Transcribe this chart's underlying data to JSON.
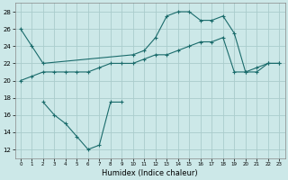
{
  "xlabel": "Humidex (Indice chaleur)",
  "bg_color": "#cce8e8",
  "grid_color": "#aacccc",
  "line_color": "#1a6b6b",
  "xlim": [
    -0.5,
    23.5
  ],
  "ylim": [
    11,
    29
  ],
  "xticks": [
    0,
    1,
    2,
    3,
    4,
    5,
    6,
    7,
    8,
    9,
    10,
    11,
    12,
    13,
    14,
    15,
    16,
    17,
    18,
    19,
    20,
    21,
    22,
    23
  ],
  "yticks": [
    12,
    14,
    16,
    18,
    20,
    22,
    24,
    26,
    28
  ],
  "series": [
    {
      "x": [
        0,
        1,
        2,
        10,
        11,
        12,
        13,
        14,
        15,
        16,
        17,
        18,
        19,
        20,
        21,
        22,
        23
      ],
      "y": [
        26,
        24,
        22,
        23,
        23.5,
        25,
        27.5,
        28,
        28,
        27,
        27,
        27.5,
        25.5,
        21,
        21,
        22,
        22
      ]
    },
    {
      "x": [
        0,
        1,
        2,
        3,
        4,
        5,
        6,
        7,
        8,
        9,
        10,
        11,
        12,
        13,
        14,
        15,
        16,
        17,
        18,
        19,
        20,
        21,
        22,
        23
      ],
      "y": [
        20,
        20.5,
        21,
        21,
        21,
        21,
        21,
        21.5,
        22,
        22,
        22,
        22.5,
        23,
        23,
        23.5,
        24,
        24.5,
        24.5,
        25,
        21,
        21,
        21.5,
        22,
        22
      ]
    },
    {
      "x": [
        2,
        3,
        4,
        5,
        6,
        7,
        8,
        9
      ],
      "y": [
        17.5,
        16,
        15,
        13.5,
        12,
        12.5,
        17.5,
        17.5
      ]
    }
  ]
}
